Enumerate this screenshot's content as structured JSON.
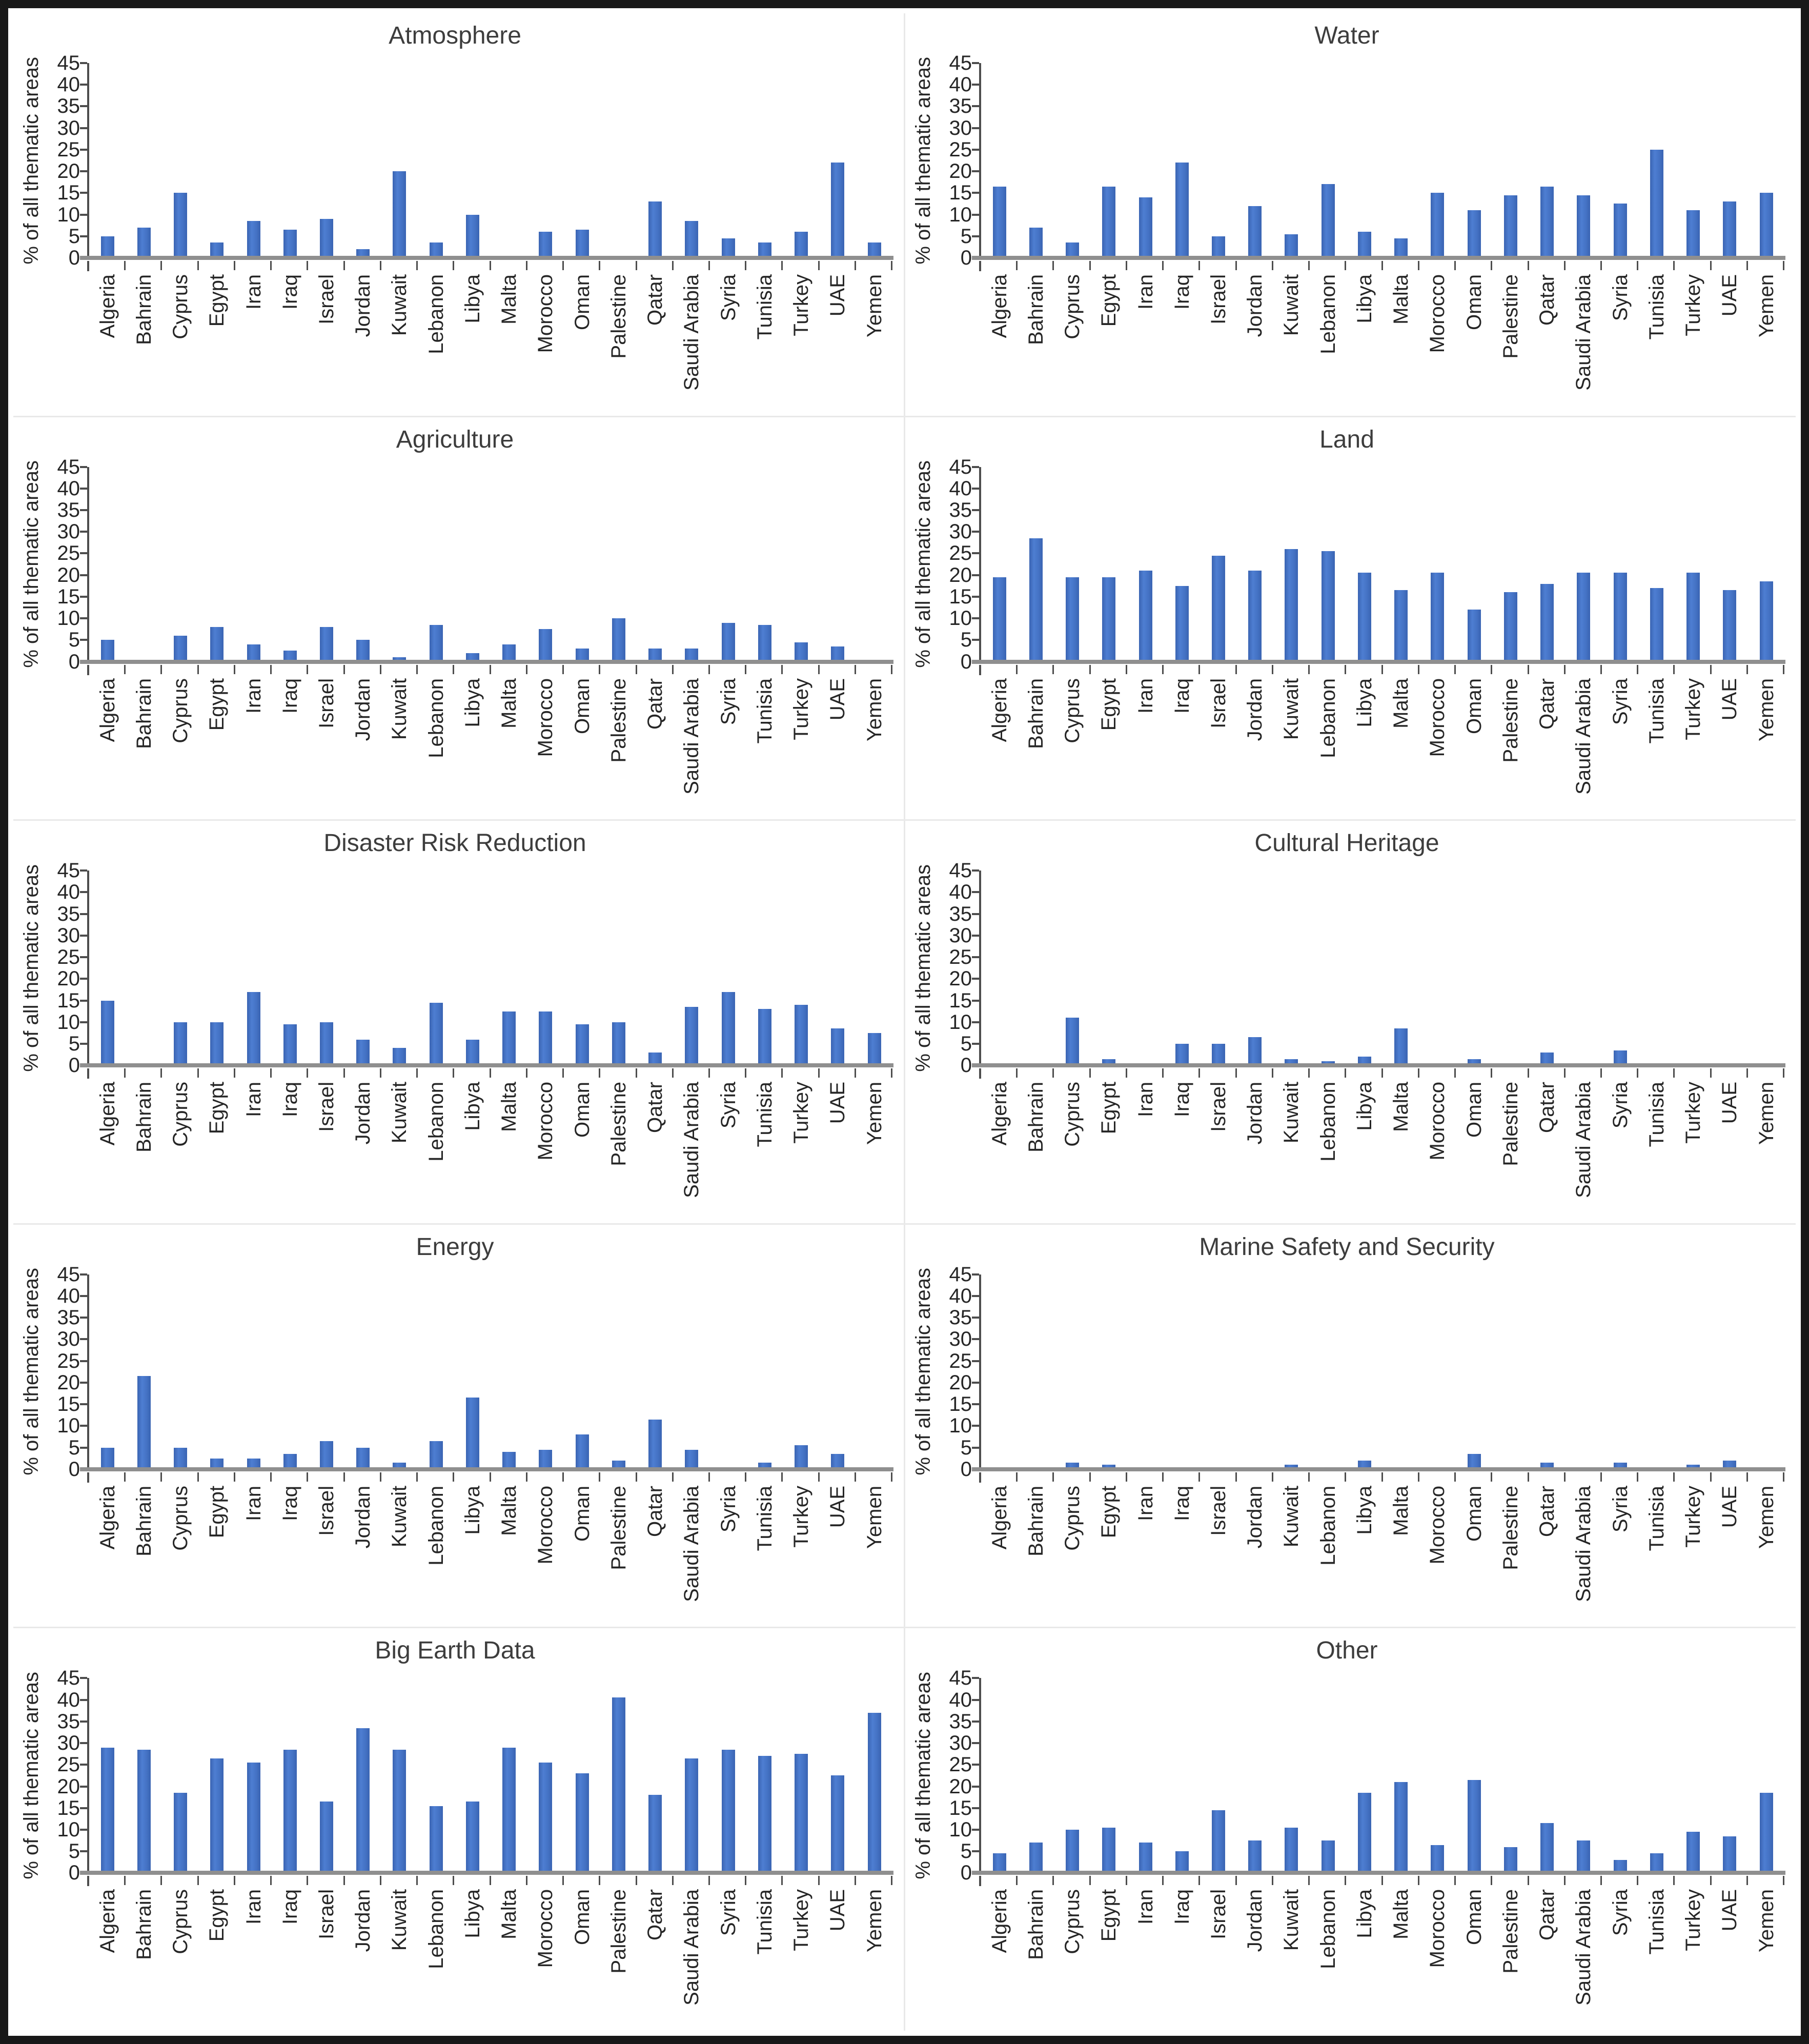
{
  "figure": {
    "layout": "2 columns x 5 rows of bar charts",
    "background_color": "#ffffff",
    "border_color": "#181818",
    "bar_color": "#4472C4"
  },
  "axis": {
    "ylabel": "% of all thematic areas",
    "ymin": 0,
    "ymax": 45,
    "step": 5,
    "ticks": [
      0,
      5,
      10,
      15,
      20,
      25,
      30,
      35,
      40,
      45
    ]
  },
  "chart_data": [
    {
      "type": "bar",
      "title": "Atmosphere",
      "ylabel": "% of all thematic areas",
      "ylim": [
        0,
        45
      ],
      "grid": false,
      "legend": "none",
      "categories": [
        "Algeria",
        "Bahrain",
        "Cyprus",
        "Egypt",
        "Iran",
        "Iraq",
        "Israel",
        "Jordan",
        "Kuwait",
        "Lebanon",
        "Libya",
        "Malta",
        "Morocco",
        "Oman",
        "Palestine",
        "Qatar",
        "Saudi Arabia",
        "Syria",
        "Tunisia",
        "Turkey",
        "UAE",
        "Yemen"
      ],
      "values": [
        5,
        7,
        15,
        3.5,
        8.5,
        6.5,
        9,
        2,
        20,
        3.5,
        10,
        0,
        6,
        6.5,
        0,
        13,
        8.5,
        4.5,
        3.5,
        6,
        22,
        3.5
      ]
    },
    {
      "type": "bar",
      "title": "Water",
      "ylabel": "% of all thematic areas",
      "ylim": [
        0,
        45
      ],
      "grid": false,
      "legend": "none",
      "categories": [
        "Algeria",
        "Bahrain",
        "Cyprus",
        "Egypt",
        "Iran",
        "Iraq",
        "Israel",
        "Jordan",
        "Kuwait",
        "Lebanon",
        "Libya",
        "Malta",
        "Morocco",
        "Oman",
        "Palestine",
        "Qatar",
        "Saudi Arabia",
        "Syria",
        "Tunisia",
        "Turkey",
        "UAE",
        "Yemen"
      ],
      "values": [
        16.5,
        7,
        3.5,
        16.5,
        14,
        22,
        5,
        12,
        5.5,
        17,
        6,
        4.5,
        15,
        11,
        14.5,
        16.5,
        14.5,
        12.5,
        25,
        11,
        13,
        15
      ]
    },
    {
      "type": "bar",
      "title": "Agriculture",
      "ylabel": "% of all thematic areas",
      "ylim": [
        0,
        45
      ],
      "grid": false,
      "legend": "none",
      "categories": [
        "Algeria",
        "Bahrain",
        "Cyprus",
        "Egypt",
        "Iran",
        "Iraq",
        "Israel",
        "Jordan",
        "Kuwait",
        "Lebanon",
        "Libya",
        "Malta",
        "Morocco",
        "Oman",
        "Palestine",
        "Qatar",
        "Saudi Arabia",
        "Syria",
        "Tunisia",
        "Turkey",
        "UAE",
        "Yemen"
      ],
      "values": [
        5,
        0,
        6,
        8,
        4,
        2.5,
        8,
        5,
        1,
        8.5,
        2,
        4,
        7.5,
        3,
        10,
        3,
        3,
        9,
        8.5,
        4.5,
        3.5,
        0
      ]
    },
    {
      "type": "bar",
      "title": "Land",
      "ylabel": "% of all thematic areas",
      "ylim": [
        0,
        45
      ],
      "grid": false,
      "legend": "none",
      "categories": [
        "Algeria",
        "Bahrain",
        "Cyprus",
        "Egypt",
        "Iran",
        "Iraq",
        "Israel",
        "Jordan",
        "Kuwait",
        "Lebanon",
        "Libya",
        "Malta",
        "Morocco",
        "Oman",
        "Palestine",
        "Qatar",
        "Saudi Arabia",
        "Syria",
        "Tunisia",
        "Turkey",
        "UAE",
        "Yemen"
      ],
      "values": [
        19.5,
        28.5,
        19.5,
        19.5,
        21,
        17.5,
        24.5,
        21,
        26,
        25.5,
        20.5,
        16.5,
        20.5,
        12,
        16,
        18,
        20.5,
        20.5,
        17,
        20.5,
        16.5,
        18.5
      ]
    },
    {
      "type": "bar",
      "title": "Disaster Risk Reduction",
      "ylabel": "% of all thematic areas",
      "ylim": [
        0,
        45
      ],
      "grid": false,
      "legend": "none",
      "categories": [
        "Algeria",
        "Bahrain",
        "Cyprus",
        "Egypt",
        "Iran",
        "Iraq",
        "Israel",
        "Jordan",
        "Kuwait",
        "Lebanon",
        "Libya",
        "Malta",
        "Morocco",
        "Oman",
        "Palestine",
        "Qatar",
        "Saudi Arabia",
        "Syria",
        "Tunisia",
        "Turkey",
        "UAE",
        "Yemen"
      ],
      "values": [
        15,
        0,
        10,
        10,
        17,
        9.5,
        10,
        6,
        4,
        14.5,
        6,
        12.5,
        12.5,
        9.5,
        10,
        3,
        13.5,
        17,
        13,
        14,
        8.5,
        7.5
      ]
    },
    {
      "type": "bar",
      "title": "Cultural Heritage",
      "ylabel": "% of all thematic areas",
      "ylim": [
        0,
        45
      ],
      "grid": false,
      "legend": "none",
      "categories": [
        "Algeria",
        "Bahrain",
        "Cyprus",
        "Egypt",
        "Iran",
        "Iraq",
        "Israel",
        "Jordan",
        "Kuwait",
        "Lebanon",
        "Libya",
        "Malta",
        "Morocco",
        "Oman",
        "Palestine",
        "Qatar",
        "Saudi Arabia",
        "Syria",
        "Tunisia",
        "Turkey",
        "UAE",
        "Yemen"
      ],
      "values": [
        0,
        0,
        11,
        1.5,
        0,
        5,
        5,
        6.5,
        1.5,
        1,
        2,
        8.5,
        0.5,
        1.5,
        0,
        3,
        0.5,
        3.5,
        0.2,
        0.5,
        0,
        0
      ]
    },
    {
      "type": "bar",
      "title": "Energy",
      "ylabel": "% of all thematic areas",
      "ylim": [
        0,
        45
      ],
      "grid": false,
      "legend": "none",
      "categories": [
        "Algeria",
        "Bahrain",
        "Cyprus",
        "Egypt",
        "Iran",
        "Iraq",
        "Israel",
        "Jordan",
        "Kuwait",
        "Lebanon",
        "Libya",
        "Malta",
        "Morocco",
        "Oman",
        "Palestine",
        "Qatar",
        "Saudi Arabia",
        "Syria",
        "Tunisia",
        "Turkey",
        "UAE",
        "Yemen"
      ],
      "values": [
        5,
        21.5,
        5,
        2.5,
        2.5,
        3.5,
        6.5,
        5,
        1.5,
        6.5,
        16.5,
        4,
        4.5,
        8,
        2,
        11.5,
        4.5,
        0,
        1.5,
        5.5,
        3.5,
        0
      ]
    },
    {
      "type": "bar",
      "title": "Marine Safety and Security",
      "ylabel": "% of all thematic areas",
      "ylim": [
        0,
        45
      ],
      "grid": false,
      "legend": "none",
      "categories": [
        "Algeria",
        "Bahrain",
        "Cyprus",
        "Egypt",
        "Iran",
        "Iraq",
        "Israel",
        "Jordan",
        "Kuwait",
        "Lebanon",
        "Libya",
        "Malta",
        "Morocco",
        "Oman",
        "Palestine",
        "Qatar",
        "Saudi Arabia",
        "Syria",
        "Tunisia",
        "Turkey",
        "UAE",
        "Yemen"
      ],
      "values": [
        0.5,
        0,
        1.5,
        1,
        0,
        0,
        0.5,
        0,
        1,
        0,
        2,
        0,
        0.5,
        3.5,
        0,
        1.5,
        0.5,
        1.5,
        0,
        1,
        2,
        0
      ]
    },
    {
      "type": "bar",
      "title": "Big Earth Data",
      "ylabel": "% of all thematic areas",
      "ylim": [
        0,
        45
      ],
      "grid": false,
      "legend": "none",
      "categories": [
        "Algeria",
        "Bahrain",
        "Cyprus",
        "Egypt",
        "Iran",
        "Iraq",
        "Israel",
        "Jordan",
        "Kuwait",
        "Lebanon",
        "Libya",
        "Malta",
        "Morocco",
        "Oman",
        "Palestine",
        "Qatar",
        "Saudi Arabia",
        "Syria",
        "Tunisia",
        "Turkey",
        "UAE",
        "Yemen"
      ],
      "values": [
        29,
        28.5,
        18.5,
        26.5,
        25.5,
        28.5,
        16.5,
        33.5,
        28.5,
        15.5,
        16.5,
        29,
        25.5,
        23,
        40.5,
        18,
        26.5,
        28.5,
        27,
        27.5,
        22.5,
        37
      ]
    },
    {
      "type": "bar",
      "title": "Other",
      "ylabel": "% of all thematic areas",
      "ylim": [
        0,
        45
      ],
      "grid": false,
      "legend": "none",
      "categories": [
        "Algeria",
        "Bahrain",
        "Cyprus",
        "Egypt",
        "Iran",
        "Iraq",
        "Israel",
        "Jordan",
        "Kuwait",
        "Lebanon",
        "Libya",
        "Malta",
        "Morocco",
        "Oman",
        "Palestine",
        "Qatar",
        "Saudi Arabia",
        "Syria",
        "Tunisia",
        "Turkey",
        "UAE",
        "Yemen"
      ],
      "values": [
        4.5,
        7,
        10,
        10.5,
        7,
        5,
        14.5,
        7.5,
        10.5,
        7.5,
        18.5,
        21,
        6.5,
        21.5,
        6,
        11.5,
        7.5,
        3,
        4.5,
        9.5,
        8.5,
        18.5
      ]
    }
  ]
}
